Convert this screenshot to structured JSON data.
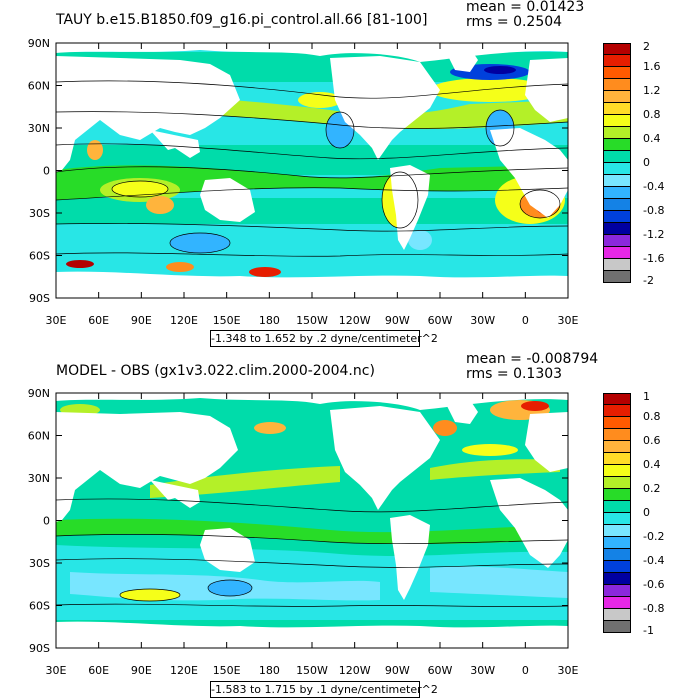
{
  "panels": [
    {
      "title": "TAUY b.e15.B1850.f09_g16.pi_control.all.66 [81-100]",
      "mean": "mean = 0.01423",
      "rms": "rms = 0.2504",
      "units_label": "-1.348 to 1.652 by .2 dyne/centimeter^2",
      "colorbar": {
        "labels": [
          "2",
          "1.6",
          "1.2",
          "0.8",
          "0.4",
          "0",
          "-0.4",
          "-0.8",
          "-1.2",
          "-1.6",
          "-2"
        ],
        "colors": [
          "#b40000",
          "#e61e00",
          "#ff5a00",
          "#ff8c1e",
          "#ffb43c",
          "#ffdc28",
          "#f5ff19",
          "#b4f028",
          "#28dc28",
          "#00dcaa",
          "#28e6e6",
          "#78e6ff",
          "#32b4ff",
          "#1482e6",
          "#0040dc",
          "#0000a0",
          "#8c28dc",
          "#e628e6",
          "#c8c8c8",
          "#707070"
        ]
      }
    },
    {
      "title": "MODEL - OBS (gx1v3.022.clim.2000-2004.nc)",
      "mean": "mean = -0.008794",
      "rms": "rms = 0.1303",
      "units_label": "-1.583 to 1.715 by .1 dyne/centimeter^2",
      "colorbar": {
        "labels": [
          "1",
          "0.8",
          "0.6",
          "0.4",
          "0.2",
          "0",
          "-0.2",
          "-0.4",
          "-0.6",
          "-0.8",
          "-1"
        ],
        "colors": [
          "#b40000",
          "#e61e00",
          "#ff5a00",
          "#ff8c1e",
          "#ffb43c",
          "#ffdc28",
          "#f5ff19",
          "#b4f028",
          "#28dc28",
          "#00dcaa",
          "#28e6e6",
          "#78e6ff",
          "#32b4ff",
          "#1482e6",
          "#0040dc",
          "#0000a0",
          "#8c28dc",
          "#e628e6",
          "#c8c8c8",
          "#707070"
        ]
      }
    }
  ],
  "axes": {
    "lat_labels": [
      "90N",
      "60N",
      "30N",
      "0",
      "30S",
      "60S",
      "90S"
    ],
    "lon_labels": [
      "30E",
      "60E",
      "90E",
      "120E",
      "150E",
      "180",
      "150W",
      "120W",
      "90W",
      "60W",
      "30W",
      "0",
      "30E"
    ]
  },
  "colors": {
    "land": "#ffffff",
    "ocean_base": "#00dcaa",
    "contour": "#000000"
  }
}
